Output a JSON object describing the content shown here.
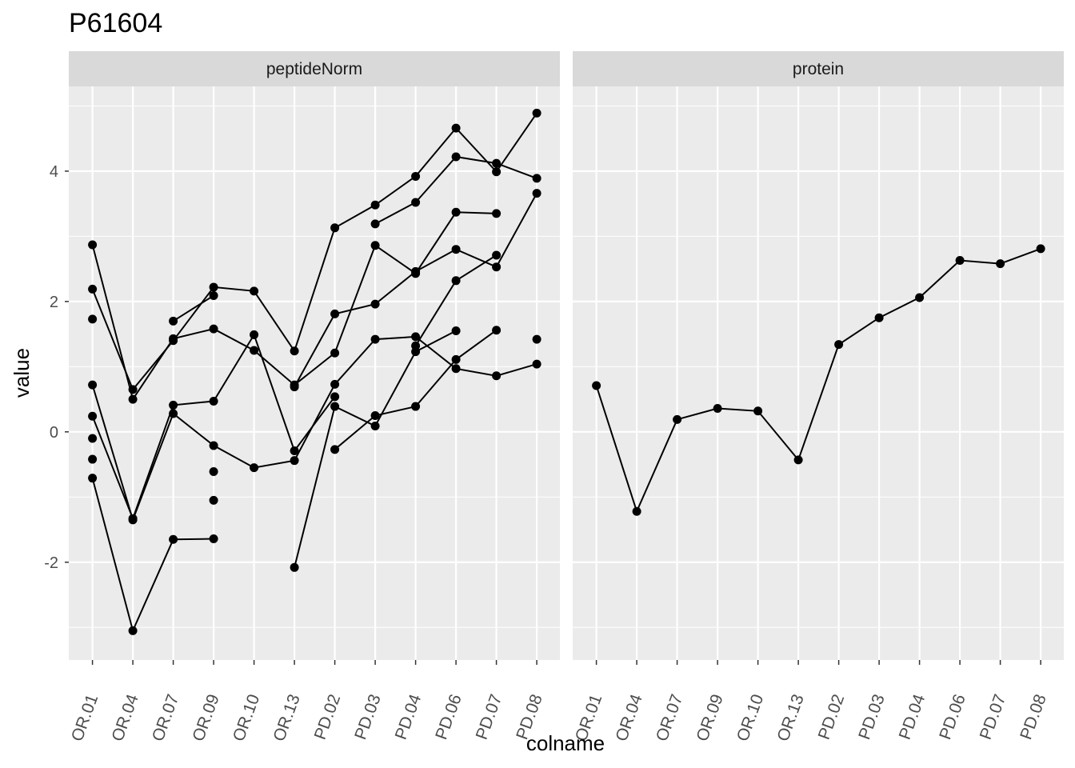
{
  "chart_data": {
    "type": "line",
    "title": "P61604",
    "xlabel": "colname",
    "ylabel": "value",
    "ylim": [
      -3.5,
      5.3
    ],
    "yticks": [
      -2,
      0,
      2,
      4
    ],
    "grid": true,
    "categories": [
      "OR.01",
      "OR.04",
      "OR.07",
      "OR.09",
      "OR.10",
      "OR.13",
      "PD.02",
      "PD.03",
      "PD.04",
      "PD.06",
      "PD.07",
      "PD.08"
    ],
    "panels": [
      {
        "name": "peptideNorm",
        "series": [
          {
            "values": [
              2.87,
              0.5,
              1.43,
              1.58,
              1.25,
              0.72,
              1.21,
              2.86,
              2.43,
              3.37,
              3.35,
              null
            ]
          },
          {
            "values": [
              2.19,
              0.65,
              1.4,
              2.22,
              2.16,
              1.24,
              3.13,
              3.48,
              3.92,
              4.66,
              3.99,
              4.89
            ]
          },
          {
            "values": [
              1.73,
              null,
              null,
              null,
              null,
              null,
              null,
              null,
              null,
              null,
              null,
              null
            ]
          },
          {
            "values": [
              0.72,
              -1.35,
              0.28,
              -0.21,
              -0.55,
              -0.44,
              0.73,
              1.42,
              1.46,
              0.97,
              0.86,
              1.04
            ]
          },
          {
            "values": [
              0.24,
              -1.33,
              0.41,
              0.47,
              1.49,
              -0.29,
              0.54,
              null,
              null,
              null,
              null,
              null
            ]
          },
          {
            "values": [
              -0.1,
              null,
              null,
              null,
              null,
              null,
              null,
              null,
              null,
              null,
              null,
              null
            ]
          },
          {
            "values": [
              -0.42,
              null,
              null,
              -0.61,
              null,
              null,
              null,
              null,
              null,
              null,
              null,
              null
            ]
          },
          {
            "values": [
              -0.71,
              -3.05,
              -1.65,
              -1.64,
              null,
              -2.08,
              0.39,
              0.09,
              1.23,
              1.55,
              null,
              null
            ]
          },
          {
            "values": [
              null,
              null,
              1.7,
              2.09,
              null,
              null,
              null,
              null,
              null,
              null,
              null,
              null
            ]
          },
          {
            "values": [
              null,
              null,
              null,
              -1.05,
              null,
              null,
              null,
              null,
              null,
              null,
              null,
              null
            ]
          },
          {
            "values": [
              null,
              null,
              null,
              null,
              null,
              0.69,
              1.81,
              1.96,
              2.46,
              2.8,
              2.53,
              3.66
            ]
          },
          {
            "values": [
              null,
              null,
              null,
              null,
              null,
              null,
              -0.27,
              0.25,
              0.39,
              1.11,
              1.56,
              null
            ]
          },
          {
            "values": [
              null,
              null,
              null,
              null,
              null,
              null,
              null,
              3.19,
              3.52,
              4.22,
              4.12,
              3.89
            ]
          },
          {
            "values": [
              null,
              null,
              null,
              null,
              null,
              null,
              null,
              null,
              1.32,
              2.32,
              2.71,
              null
            ]
          },
          {
            "values": [
              null,
              null,
              null,
              null,
              null,
              null,
              null,
              null,
              null,
              null,
              null,
              1.42
            ]
          }
        ]
      },
      {
        "name": "protein",
        "series": [
          {
            "values": [
              0.71,
              -1.22,
              0.19,
              0.36,
              0.32,
              -0.43,
              1.34,
              1.75,
              2.06,
              2.63,
              2.58,
              2.81
            ]
          }
        ]
      }
    ]
  },
  "colors": {
    "panel_bg": "#ebebeb",
    "strip_bg": "#d9d9d9",
    "grid": "#ffffff",
    "line": "#000000",
    "text": "#000000",
    "tick_text": "#4d4d4d"
  }
}
